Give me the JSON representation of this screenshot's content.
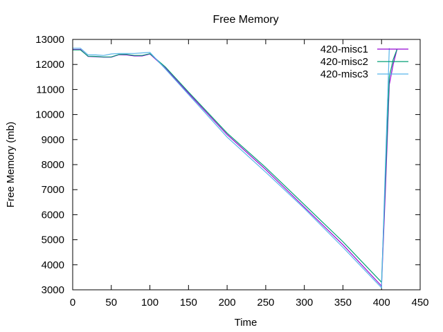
{
  "chart_data": {
    "type": "line",
    "title": "Free Memory",
    "xlabel": "Time",
    "ylabel": "Free Memory (mb)",
    "xlim": [
      0,
      450
    ],
    "ylim": [
      3000,
      13000
    ],
    "xticks": [
      0,
      50,
      100,
      150,
      200,
      250,
      300,
      350,
      400,
      450
    ],
    "yticks": [
      3000,
      4000,
      5000,
      6000,
      7000,
      8000,
      9000,
      10000,
      11000,
      12000,
      13000
    ],
    "grid": false,
    "legend_position": "top-right",
    "series": [
      {
        "name": "420-misc1",
        "color": "#9400d3",
        "x": [
          0,
          10,
          20,
          30,
          40,
          50,
          60,
          70,
          80,
          90,
          100,
          120,
          150,
          200,
          250,
          300,
          350,
          400,
          405,
          410,
          415,
          420
        ],
        "y": [
          12600,
          12600,
          12320,
          12310,
          12290,
          12290,
          12390,
          12380,
          12340,
          12340,
          12420,
          11850,
          10850,
          9200,
          7800,
          6300,
          4800,
          3150,
          7000,
          11200,
          12000,
          12600
        ]
      },
      {
        "name": "420-misc2",
        "color": "#009e73",
        "x": [
          0,
          10,
          20,
          30,
          40,
          50,
          60,
          70,
          80,
          90,
          100,
          120,
          150,
          200,
          250,
          300,
          350,
          400,
          405,
          410,
          415,
          420
        ],
        "y": [
          12580,
          12580,
          12330,
          12320,
          12300,
          12300,
          12400,
          12400,
          12360,
          12360,
          12430,
          11900,
          10900,
          9260,
          7880,
          6400,
          4920,
          3300,
          7500,
          11500,
          12200,
          12600
        ]
      },
      {
        "name": "420-misc3",
        "color": "#56b4e9",
        "x": [
          0,
          10,
          20,
          30,
          40,
          50,
          60,
          70,
          80,
          90,
          100,
          120,
          150,
          200,
          250,
          300,
          350,
          400,
          405,
          410
        ],
        "y": [
          12650,
          12650,
          12380,
          12380,
          12360,
          12420,
          12440,
          12440,
          12440,
          12460,
          12480,
          11820,
          10800,
          9100,
          7700,
          6250,
          4700,
          3080,
          8000,
          12650
        ]
      }
    ]
  }
}
